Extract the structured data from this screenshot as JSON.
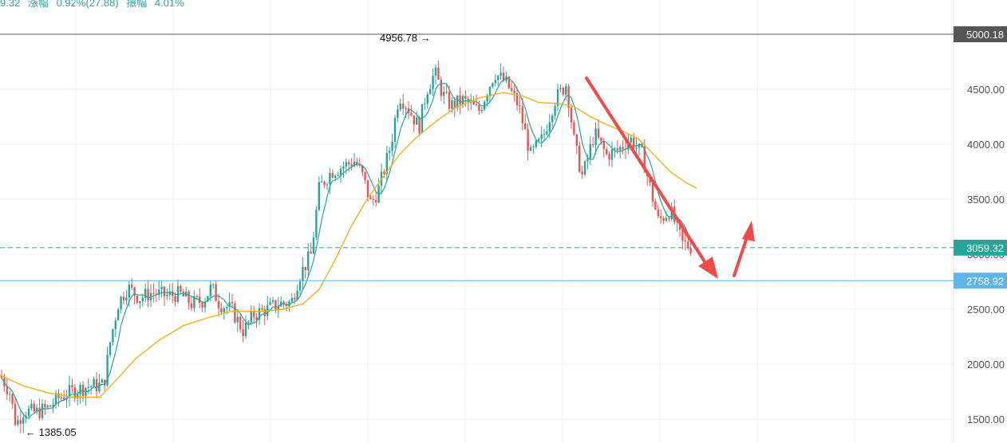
{
  "header": {
    "price_fragment": "9.32",
    "change_label": "漲幅",
    "change_value": "0.92%(27.88)",
    "amplitude_label": "振幅",
    "amplitude_value": "4.01%"
  },
  "chart_data": {
    "type": "candlestick",
    "y_ticks": [
      "1500.00",
      "2000.00",
      "2500.00",
      "3000.00",
      "3500.00",
      "4000.00",
      "4500.00",
      "5000.00"
    ],
    "ylim": [
      1380,
      5250
    ],
    "grid": true,
    "price_lines": [
      {
        "name": "top",
        "value": 5000.18,
        "label": "5000.18",
        "color": "#555555",
        "style": "solid"
      },
      {
        "name": "last",
        "value": 3059.32,
        "label": "3059.32",
        "color": "#26a69a",
        "style": "dashed"
      },
      {
        "name": "support",
        "value": 2758.92,
        "label": "2758.92",
        "color": "#5fb4e8",
        "style": "solid"
      }
    ],
    "annotations": [
      {
        "text": "4956.78 →",
        "value": 4956.78
      },
      {
        "text": "← 1385.05",
        "value": 1385.05
      }
    ],
    "colors": {
      "up": "#26a69a",
      "down": "#ef5350",
      "ma_fast": "#26a69a",
      "ma_slow": "#f2b01e",
      "arrow": "#f04b4b"
    },
    "close_path": [
      [
        0,
        1900
      ],
      [
        12,
        1750
      ],
      [
        20,
        1450
      ],
      [
        30,
        1580
      ],
      [
        45,
        1560
      ],
      [
        60,
        1600
      ],
      [
        75,
        1700
      ],
      [
        90,
        1750
      ],
      [
        110,
        1800
      ],
      [
        130,
        1810
      ],
      [
        138,
        2200
      ],
      [
        148,
        2550
      ],
      [
        160,
        2700
      ],
      [
        175,
        2600
      ],
      [
        190,
        2650
      ],
      [
        210,
        2620
      ],
      [
        225,
        2640
      ],
      [
        240,
        2550
      ],
      [
        255,
        2580
      ],
      [
        265,
        2700
      ],
      [
        275,
        2550
      ],
      [
        290,
        2500
      ],
      [
        305,
        2300
      ],
      [
        318,
        2450
      ],
      [
        335,
        2500
      ],
      [
        350,
        2550
      ],
      [
        365,
        2560
      ],
      [
        375,
        2800
      ],
      [
        390,
        3000
      ],
      [
        400,
        3600
      ],
      [
        415,
        3750
      ],
      [
        430,
        3800
      ],
      [
        445,
        3850
      ],
      [
        455,
        3700
      ],
      [
        465,
        3450
      ],
      [
        475,
        3600
      ],
      [
        490,
        4000
      ],
      [
        500,
        4450
      ],
      [
        510,
        4350
      ],
      [
        525,
        4150
      ],
      [
        535,
        4500
      ],
      [
        545,
        4650
      ],
      [
        555,
        4450
      ],
      [
        565,
        4350
      ],
      [
        580,
        4400
      ],
      [
        600,
        4300
      ],
      [
        620,
        4650
      ],
      [
        635,
        4550
      ],
      [
        650,
        4350
      ],
      [
        665,
        3900
      ],
      [
        680,
        4050
      ],
      [
        695,
        4400
      ],
      [
        710,
        4550
      ],
      [
        720,
        4000
      ],
      [
        730,
        3700
      ],
      [
        745,
        4100
      ],
      [
        760,
        3900
      ],
      [
        775,
        3950
      ],
      [
        790,
        4050
      ],
      [
        805,
        3900
      ],
      [
        815,
        3600
      ],
      [
        825,
        3300
      ],
      [
        840,
        3400
      ],
      [
        855,
        3100
      ],
      [
        868,
        3059
      ]
    ],
    "ma_slow_path": [
      [
        0,
        1900
      ],
      [
        30,
        1800
      ],
      [
        60,
        1740
      ],
      [
        90,
        1700
      ],
      [
        125,
        1700
      ],
      [
        145,
        1850
      ],
      [
        170,
        2050
      ],
      [
        200,
        2220
      ],
      [
        230,
        2350
      ],
      [
        260,
        2420
      ],
      [
        290,
        2480
      ],
      [
        330,
        2480
      ],
      [
        355,
        2500
      ],
      [
        380,
        2550
      ],
      [
        400,
        2680
      ],
      [
        420,
        2950
      ],
      [
        440,
        3250
      ],
      [
        460,
        3500
      ],
      [
        480,
        3700
      ],
      [
        500,
        3900
      ],
      [
        520,
        4050
      ],
      [
        545,
        4200
      ],
      [
        570,
        4330
      ],
      [
        600,
        4420
      ],
      [
        630,
        4470
      ],
      [
        655,
        4440
      ],
      [
        675,
        4380
      ],
      [
        700,
        4370
      ],
      [
        720,
        4340
      ],
      [
        740,
        4250
      ],
      [
        760,
        4180
      ],
      [
        780,
        4120
      ],
      [
        800,
        4050
      ],
      [
        820,
        3900
      ],
      [
        840,
        3750
      ],
      [
        860,
        3650
      ],
      [
        873,
        3600
      ]
    ]
  }
}
